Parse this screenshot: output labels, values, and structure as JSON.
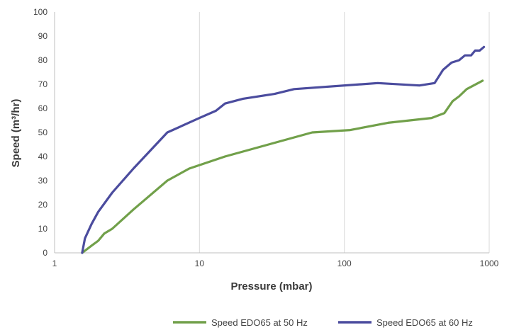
{
  "chart_data": {
    "type": "line",
    "title": "",
    "xlabel": "Pressure (mbar)",
    "ylabel": "Speed (m³/hr)",
    "xscale": "log",
    "xlim": [
      1,
      1000
    ],
    "ylim": [
      0,
      100
    ],
    "xticks": [
      "1",
      "10",
      "100",
      "1000"
    ],
    "yticks": [
      "0",
      "10",
      "20",
      "30",
      "40",
      "50",
      "60",
      "70",
      "80",
      "90",
      "100"
    ],
    "grid": "vertical",
    "legend": "bottom",
    "series": [
      {
        "name": "Speed EDO65 at 50 Hz",
        "color": "#71a04a",
        "x": [
          1.55,
          1.8,
          2.0,
          2.2,
          2.5,
          3.5,
          6.0,
          8.5,
          15,
          30,
          60,
          110,
          200,
          400,
          490,
          560,
          620,
          700,
          900
        ],
        "y": [
          0,
          3,
          5,
          8,
          10,
          18,
          30,
          35,
          40,
          45,
          50,
          51,
          54,
          56,
          58,
          63,
          65,
          68,
          71.5
        ]
      },
      {
        "name": "Speed EDO65 at 60 Hz",
        "color": "#4b4c9e",
        "x": [
          1.55,
          1.62,
          1.8,
          2.0,
          2.5,
          3.5,
          6.0,
          10,
          13,
          15,
          20,
          33,
          45,
          170,
          330,
          420,
          480,
          550,
          620,
          680,
          750,
          800,
          860,
          920
        ],
        "y": [
          0,
          6,
          12,
          17,
          25,
          35,
          50,
          56,
          59,
          62,
          64,
          66,
          68,
          70.5,
          69.5,
          70.5,
          76,
          79,
          80,
          82,
          82,
          84,
          84,
          85.5
        ]
      }
    ]
  }
}
